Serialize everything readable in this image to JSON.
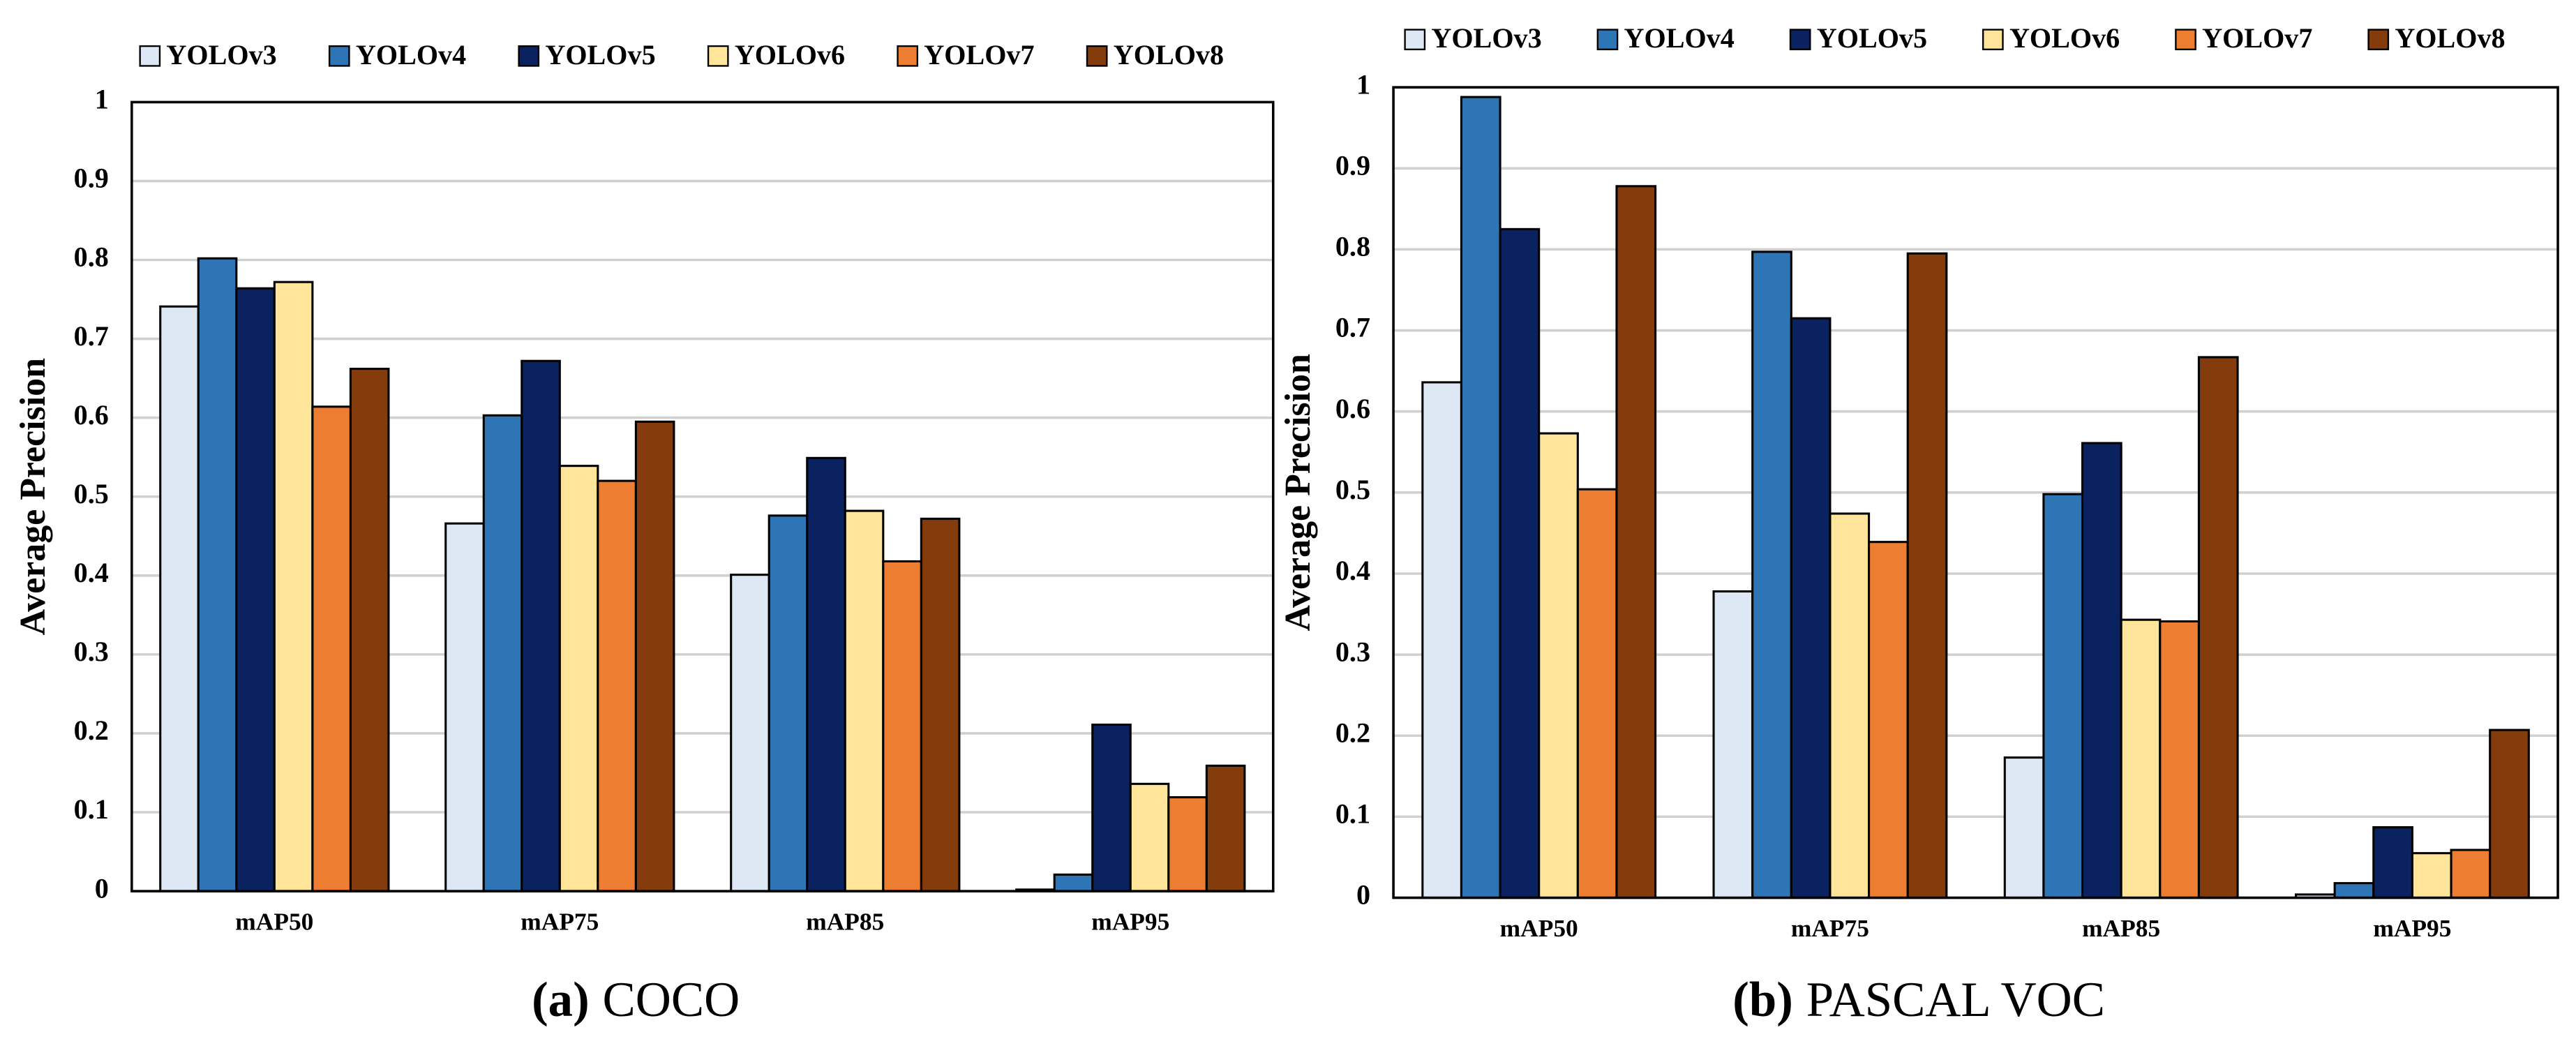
{
  "chart_data": [
    {
      "type": "bar",
      "subfigure_label": "(a)",
      "title": "COCO",
      "y_label": "Average Precision",
      "categories": [
        "mAP50",
        "mAP75",
        "mAP85",
        "mAP95"
      ],
      "series": [
        {
          "name": "YOLOv3",
          "color": "#dde8f4",
          "values": [
            0.741,
            0.466,
            0.401,
            0.002
          ]
        },
        {
          "name": "YOLOv4",
          "color": "#2e75b6",
          "values": [
            0.802,
            0.603,
            0.476,
            0.021
          ]
        },
        {
          "name": "YOLOv5",
          "color": "#0b2260",
          "values": [
            0.764,
            0.672,
            0.549,
            0.211
          ]
        },
        {
          "name": "YOLOv6",
          "color": "#fee599",
          "values": [
            0.772,
            0.539,
            0.482,
            0.136
          ]
        },
        {
          "name": "YOLOv7",
          "color": "#ed7d31",
          "values": [
            0.614,
            0.52,
            0.418,
            0.119
          ]
        },
        {
          "name": "YOLOv8",
          "color": "#843c0c",
          "values": [
            0.662,
            0.595,
            0.472,
            0.159
          ]
        }
      ],
      "ylim": [
        0,
        1
      ],
      "yticks": [
        0,
        0.1,
        0.2,
        0.3,
        0.4,
        0.5,
        0.6,
        0.7,
        0.8,
        0.9,
        1
      ],
      "grid": true,
      "legend": "top"
    },
    {
      "type": "bar",
      "subfigure_label": "(b)",
      "title": "PASCAL VOC",
      "y_label": "Average Precision",
      "categories": [
        "mAP50",
        "mAP75",
        "mAP85",
        "mAP95"
      ],
      "series": [
        {
          "name": "YOLOv3",
          "color": "#dde8f4",
          "values": [
            0.636,
            0.378,
            0.173,
            0.004
          ]
        },
        {
          "name": "YOLOv4",
          "color": "#2e75b6",
          "values": [
            0.988,
            0.797,
            0.498,
            0.018
          ]
        },
        {
          "name": "YOLOv5",
          "color": "#0b2260",
          "values": [
            0.825,
            0.715,
            0.561,
            0.087
          ]
        },
        {
          "name": "YOLOv6",
          "color": "#fee599",
          "values": [
            0.573,
            0.474,
            0.343,
            0.055
          ]
        },
        {
          "name": "YOLOv7",
          "color": "#ed7d31",
          "values": [
            0.504,
            0.439,
            0.341,
            0.059
          ]
        },
        {
          "name": "YOLOv8",
          "color": "#843c0c",
          "values": [
            0.878,
            0.795,
            0.667,
            0.207
          ]
        }
      ],
      "ylim": [
        0,
        1
      ],
      "yticks": [
        0,
        0.1,
        0.2,
        0.3,
        0.4,
        0.5,
        0.6,
        0.7,
        0.8,
        0.9,
        1
      ],
      "grid": true,
      "legend": "top"
    }
  ]
}
